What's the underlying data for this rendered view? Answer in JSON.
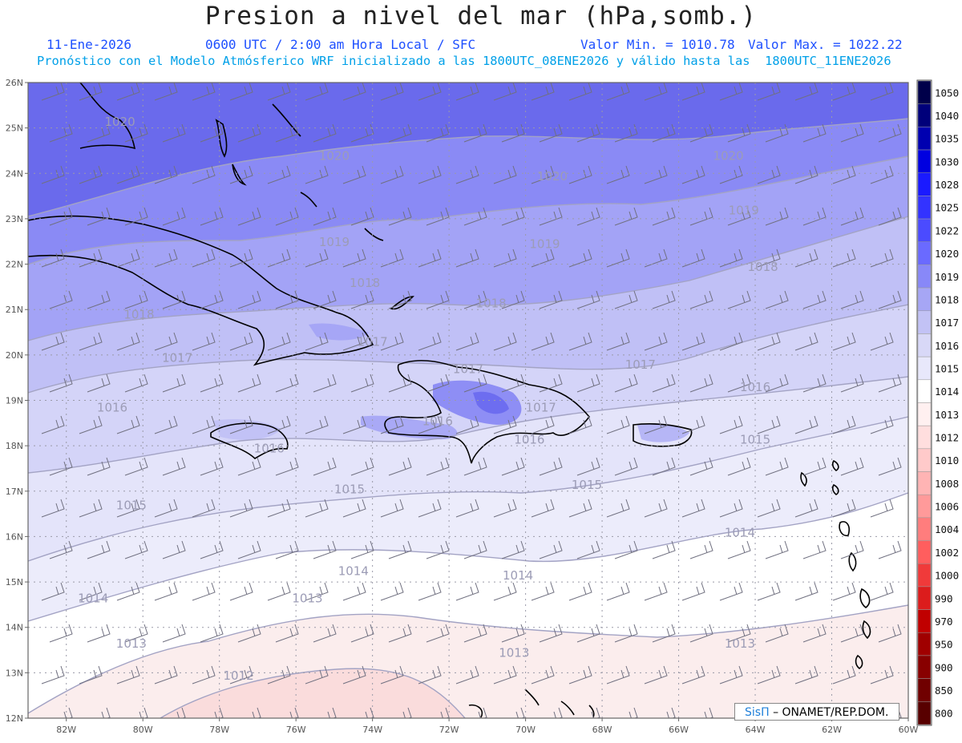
{
  "header": {
    "title": "Presion a nivel del mar (hPa,somb.)",
    "date": "11-Ene-2026",
    "time_line": "0600 UTC / 2:00 am Hora Local / SFC",
    "min_label": "Valor Min. = 1010.78",
    "max_label": "Valor Max. = 1022.22",
    "model_line": "Pronóstico con el Modelo Atmósferico WRF inicializado a las 1800UTC_08ENE2026 y válido hasta las  1800UTC_11ENE2026"
  },
  "axes": {
    "lat_labels": [
      "26N",
      "25N",
      "24N",
      "23N",
      "22N",
      "21N",
      "20N",
      "19N",
      "18N",
      "17N",
      "16N",
      "15N",
      "14N",
      "13N",
      "12N"
    ],
    "lon_labels": [
      "82W",
      "80W",
      "78W",
      "76W",
      "74W",
      "72W",
      "70W",
      "68W",
      "66W",
      "64W",
      "62W",
      "60W"
    ]
  },
  "colorbar": {
    "levels": [
      "1050",
      "1040",
      "1035",
      "1030",
      "1028",
      "1025",
      "1022",
      "1020",
      "1019",
      "1018",
      "1017",
      "1016",
      "1015",
      "1014",
      "1013",
      "1012",
      "1010",
      "1008",
      "1006",
      "1004",
      "1002",
      "1000",
      "990",
      "970",
      "950",
      "900",
      "850",
      "800"
    ],
    "colors": [
      "#00004a",
      "#00007a",
      "#0000b0",
      "#0000e0",
      "#1a1aff",
      "#3333ff",
      "#4b4bff",
      "#6a6aff",
      "#8888f8",
      "#a6a6f5",
      "#c2c2f5",
      "#d8d8f7",
      "#e8e8fb",
      "#ffffff",
      "#fff0f0",
      "#ffdede",
      "#ffcaca",
      "#ffb4b4",
      "#ff9a9a",
      "#ff7d7d",
      "#ff5e5e",
      "#f03a3a",
      "#dc1c1c",
      "#c00000",
      "#a00000",
      "#880000",
      "#700000",
      "#580000"
    ]
  },
  "contour_labels": [
    {
      "text": "1020",
      "lon": -80.6,
      "lat": 25.05
    },
    {
      "text": "1020",
      "lon": -75.0,
      "lat": 24.3
    },
    {
      "text": "1020",
      "lon": -69.3,
      "lat": 23.85
    },
    {
      "text": "1020",
      "lon": -64.7,
      "lat": 24.3
    },
    {
      "text": "1019",
      "lon": -75.0,
      "lat": 22.4
    },
    {
      "text": "1019",
      "lon": -69.5,
      "lat": 22.35
    },
    {
      "text": "1019",
      "lon": -64.3,
      "lat": 23.1
    },
    {
      "text": "1018",
      "lon": -80.1,
      "lat": 20.8
    },
    {
      "text": "1018",
      "lon": -74.2,
      "lat": 21.5
    },
    {
      "text": "1018",
      "lon": -70.9,
      "lat": 21.05
    },
    {
      "text": "1018",
      "lon": -63.8,
      "lat": 21.85
    },
    {
      "text": "1017",
      "lon": -79.1,
      "lat": 19.85
    },
    {
      "text": "1017",
      "lon": -74.0,
      "lat": 20.2
    },
    {
      "text": "1017",
      "lon": -71.5,
      "lat": 19.6
    },
    {
      "text": "1017",
      "lon": -69.6,
      "lat": 18.75
    },
    {
      "text": "1017",
      "lon": -67.0,
      "lat": 19.7
    },
    {
      "text": "1016",
      "lon": -80.8,
      "lat": 18.75
    },
    {
      "text": "1016",
      "lon": -72.3,
      "lat": 18.45
    },
    {
      "text": "1016",
      "lon": -69.9,
      "lat": 18.05
    },
    {
      "text": "1016",
      "lon": -76.7,
      "lat": 17.85
    },
    {
      "text": "1016",
      "lon": -64.0,
      "lat": 19.2
    },
    {
      "text": "1015",
      "lon": -80.3,
      "lat": 16.6
    },
    {
      "text": "1015",
      "lon": -74.6,
      "lat": 16.95
    },
    {
      "text": "1015",
      "lon": -68.4,
      "lat": 17.05
    },
    {
      "text": "1015",
      "lon": -64.0,
      "lat": 18.05
    },
    {
      "text": "1014",
      "lon": -81.3,
      "lat": 14.55
    },
    {
      "text": "1014",
      "lon": -74.5,
      "lat": 15.15
    },
    {
      "text": "1014",
      "lon": -70.2,
      "lat": 15.05
    },
    {
      "text": "1014",
      "lon": -64.4,
      "lat": 16.0
    },
    {
      "text": "1013",
      "lon": -80.3,
      "lat": 13.55
    },
    {
      "text": "1013",
      "lon": -75.7,
      "lat": 14.55
    },
    {
      "text": "1013",
      "lon": -70.3,
      "lat": 13.35
    },
    {
      "text": "1013",
      "lon": -64.4,
      "lat": 13.55
    },
    {
      "text": "1012",
      "lon": -77.5,
      "lat": 12.85
    }
  ],
  "credit": {
    "brand": "SisΠ",
    "text": "– ONAMET/REP.DOM."
  }
}
